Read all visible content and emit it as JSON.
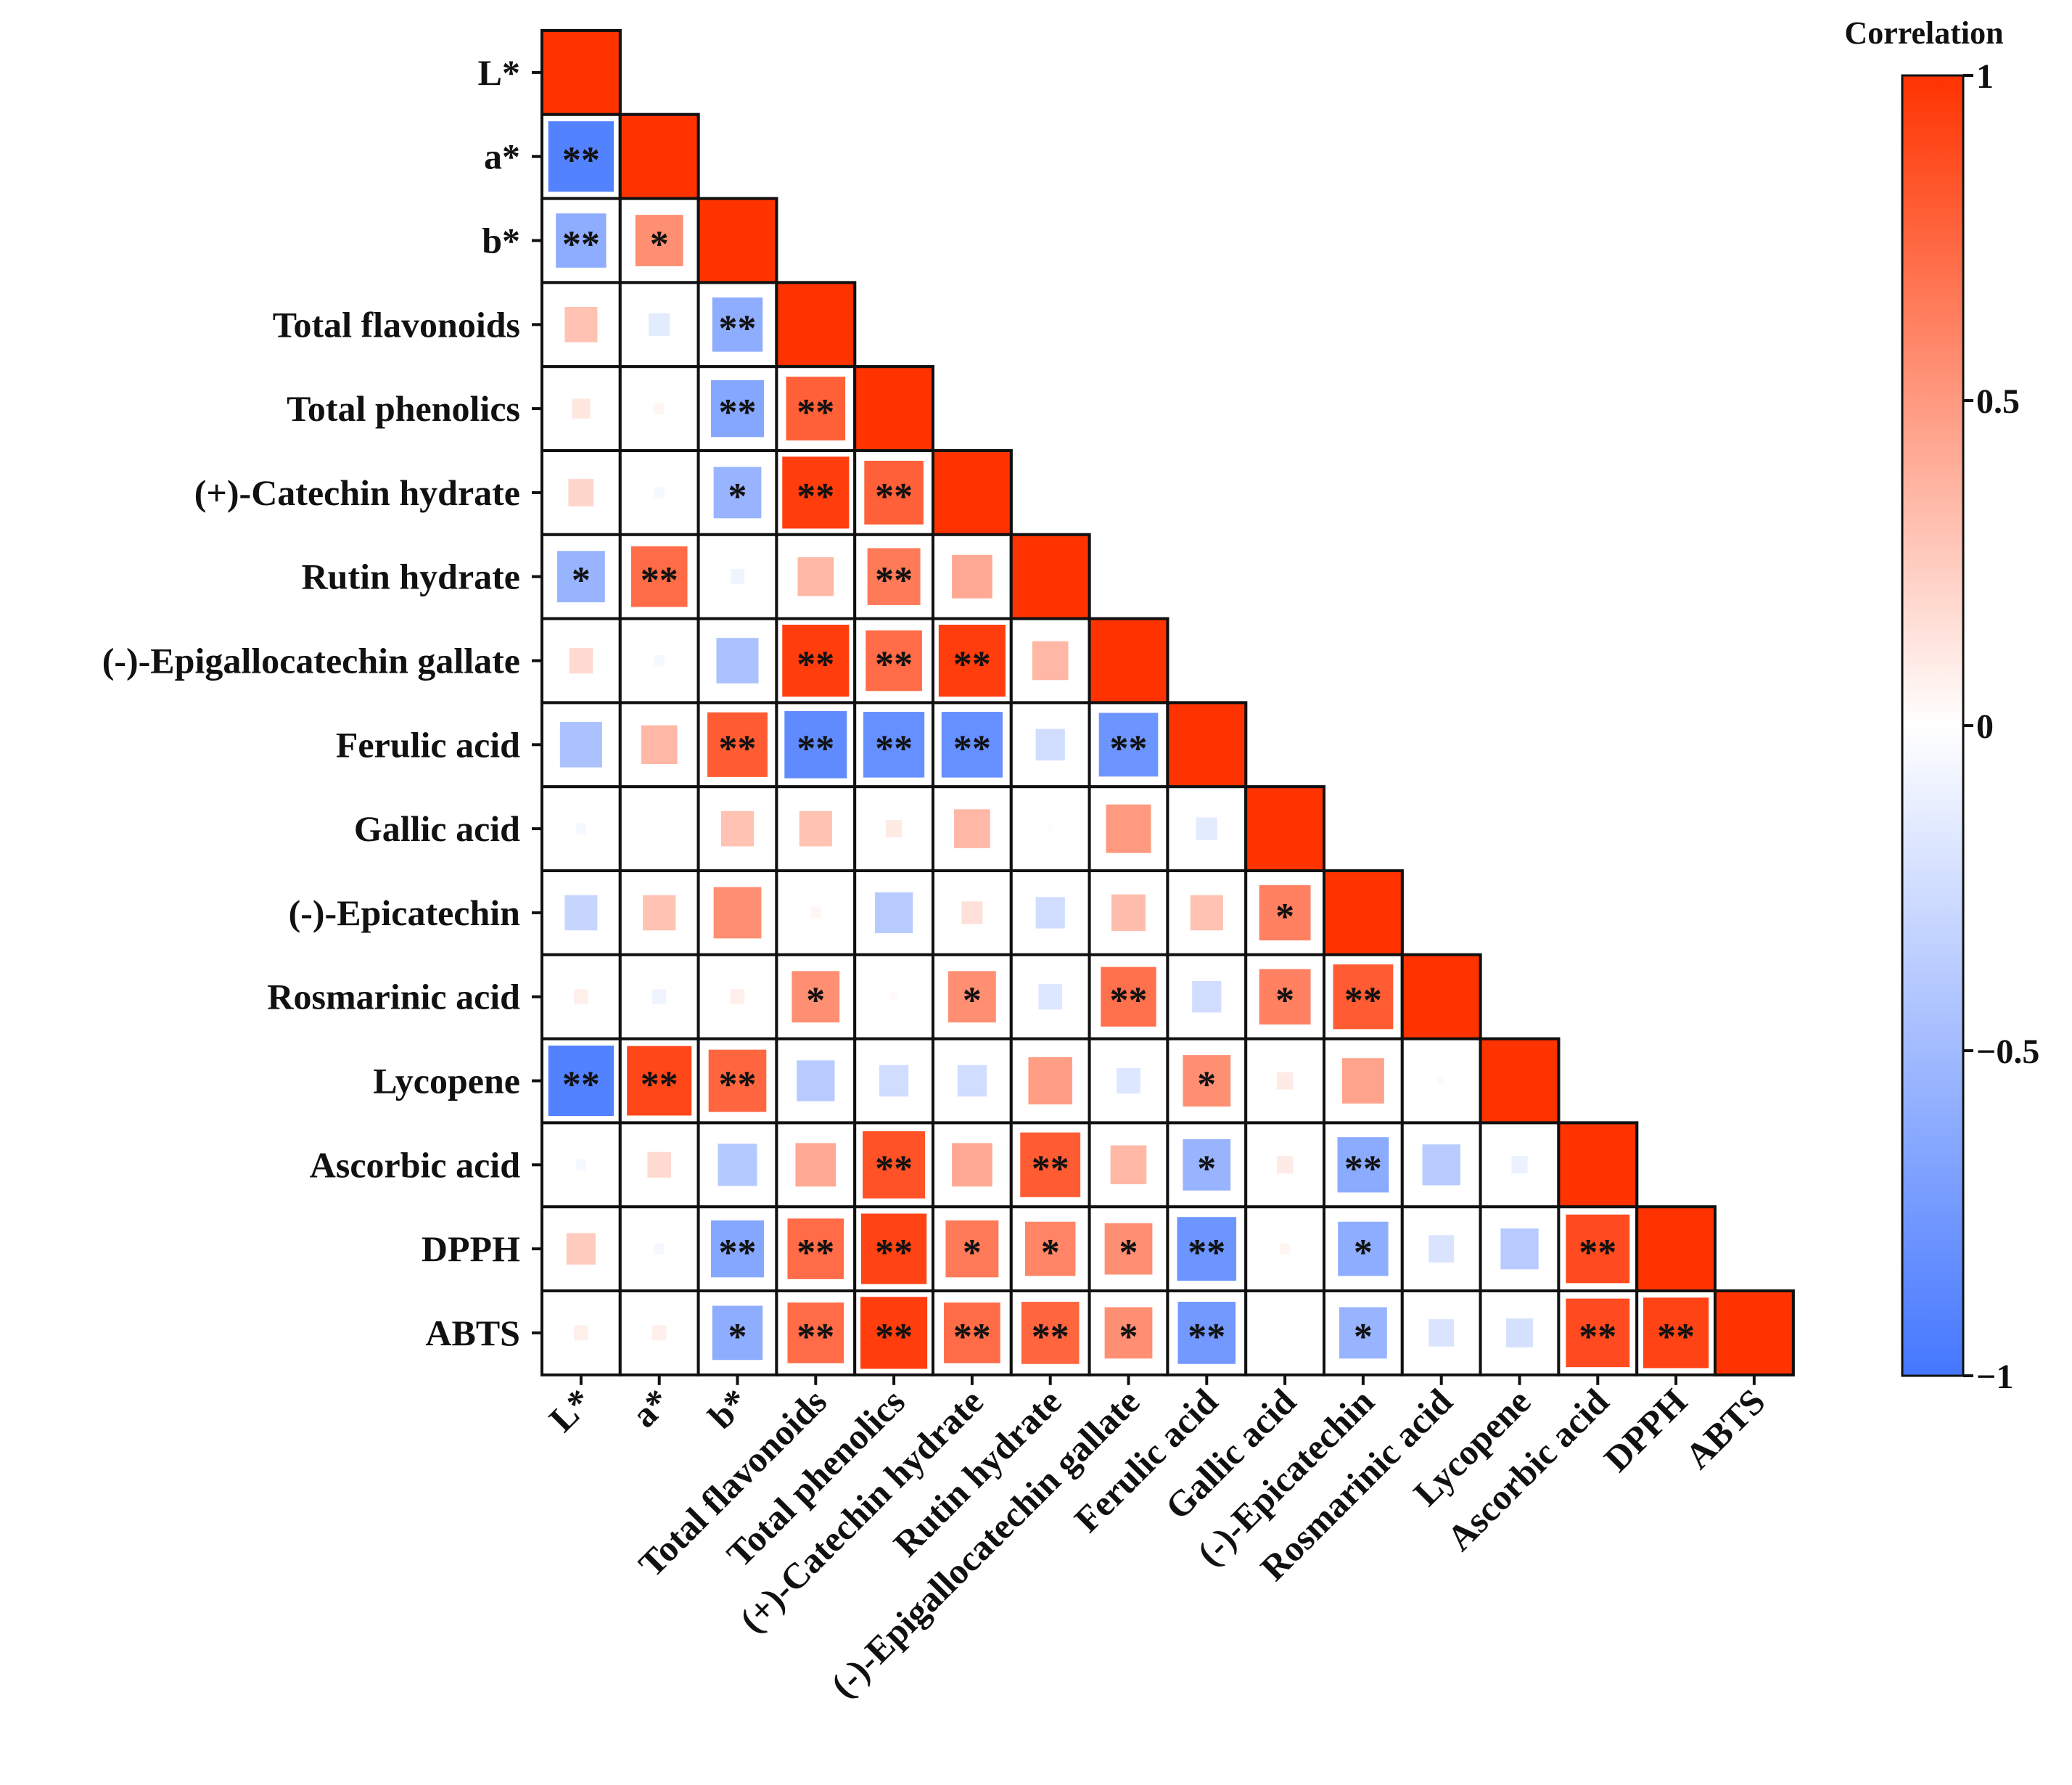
{
  "chart_data": {
    "type": "heatmap",
    "title": "",
    "variables": [
      "L*",
      "a*",
      "b*",
      "Total flavonoids",
      "Total phenolics",
      "(+)-Catechin hydrate",
      "Rutin hydrate",
      "(-)-Epigallocatechin gallate",
      "Ferulic acid",
      "Gallic acid",
      "(-)-Epicatechin",
      "Rosmarinic acid",
      "Lycopene",
      "Ascorbic acid",
      "DPPH",
      "ABTS"
    ],
    "lower_triangle_values": [
      [
        1
      ],
      [
        -0.92,
        1
      ],
      [
        -0.6,
        0.55,
        1
      ],
      [
        0.3,
        -0.15,
        -0.6,
        1
      ],
      [
        0.12,
        0.05,
        -0.65,
        0.78,
        1
      ],
      [
        0.2,
        -0.05,
        -0.55,
        0.95,
        0.78,
        1
      ],
      [
        -0.55,
        0.72,
        -0.08,
        0.35,
        0.65,
        0.42,
        1
      ],
      [
        0.18,
        -0.05,
        -0.45,
        0.95,
        0.72,
        0.95,
        0.35,
        1
      ],
      [
        -0.45,
        0.35,
        0.8,
        -0.85,
        -0.82,
        -0.82,
        -0.25,
        -0.78,
        1
      ],
      [
        -0.05,
        0.0,
        0.3,
        0.3,
        0.1,
        0.35,
        0.02,
        0.5,
        -0.15,
        1
      ],
      [
        -0.3,
        0.3,
        0.55,
        0.05,
        -0.38,
        0.15,
        -0.25,
        0.32,
        0.3,
        0.62,
        1
      ],
      [
        0.08,
        -0.08,
        0.08,
        0.55,
        0.03,
        0.55,
        -0.18,
        0.7,
        -0.25,
        0.62,
        0.8,
        1
      ],
      [
        -0.92,
        0.9,
        0.75,
        -0.38,
        -0.25,
        -0.25,
        0.48,
        -0.18,
        0.55,
        0.1,
        0.45,
        0.03,
        1
      ],
      [
        -0.05,
        0.18,
        -0.4,
        0.42,
        0.85,
        0.42,
        0.8,
        0.35,
        -0.55,
        0.1,
        -0.62,
        -0.38,
        -0.1,
        1
      ],
      [
        0.25,
        -0.05,
        -0.65,
        0.72,
        0.92,
        0.65,
        0.6,
        0.55,
        -0.78,
        0.05,
        -0.6,
        -0.2,
        -0.38,
        0.88,
        1
      ],
      [
        0.08,
        0.08,
        -0.6,
        0.72,
        0.95,
        0.72,
        0.75,
        0.55,
        -0.75,
        0.0,
        -0.55,
        -0.2,
        -0.22,
        0.88,
        0.92,
        1
      ]
    ],
    "significance": [
      [
        ""
      ],
      [
        "**",
        ""
      ],
      [
        "**",
        "*",
        ""
      ],
      [
        "",
        "",
        "**",
        ""
      ],
      [
        "",
        "",
        "**",
        "**",
        ""
      ],
      [
        "",
        "",
        "*",
        "**",
        "**",
        ""
      ],
      [
        "*",
        "**",
        "",
        "",
        "**",
        "",
        ""
      ],
      [
        "",
        "",
        "",
        "**",
        "**",
        "**",
        "",
        ""
      ],
      [
        "",
        "",
        "**",
        "**",
        "**",
        "**",
        "",
        "**",
        ""
      ],
      [
        "",
        "",
        "",
        "",
        "",
        "",
        "",
        "",
        "",
        ""
      ],
      [
        "",
        "",
        "",
        "",
        "",
        "",
        "",
        "",
        "",
        "*",
        ""
      ],
      [
        "",
        "",
        "",
        "*",
        "",
        "*",
        "",
        "**",
        "",
        "*",
        "**",
        ""
      ],
      [
        "**",
        "**",
        "**",
        "",
        "",
        "",
        "",
        "",
        "*",
        "",
        "",
        "",
        ""
      ],
      [
        "",
        "",
        "",
        "",
        "**",
        "",
        "**",
        "",
        "*",
        "",
        "**",
        "",
        "",
        ""
      ],
      [
        "",
        "",
        "**",
        "**",
        "**",
        "*",
        "*",
        "*",
        "**",
        "",
        "*",
        "",
        "",
        "**",
        ""
      ],
      [
        "",
        "",
        "*",
        "**",
        "**",
        "**",
        "**",
        "*",
        "**",
        "",
        "*",
        "",
        "",
        "**",
        "**",
        ""
      ]
    ],
    "colorbar": {
      "title": "Correlation",
      "ticks": [
        "1",
        "0.5",
        "0",
        "−0.5",
        "−1"
      ],
      "tick_values": [
        1,
        0.5,
        0,
        -0.5,
        -1
      ],
      "range": [
        -1,
        1
      ]
    },
    "colors": {
      "negative": "#4477FF",
      "zero": "#FFFFFF",
      "positive": "#FF3300"
    }
  }
}
